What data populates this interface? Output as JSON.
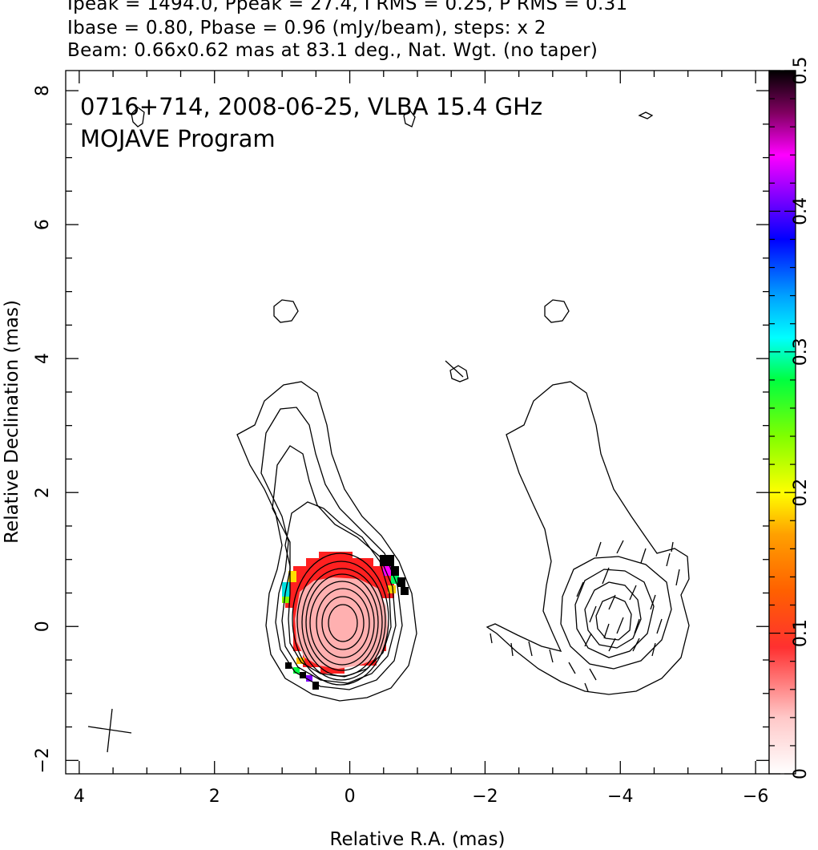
{
  "header": {
    "line1": "Ipeak = 1494.0, Ppeak = 27.4, I RMS = 0.25, P RMS = 0.31",
    "line2": "Ibase = 0.80, Pbase = 0.96 (mJy/beam), steps: x 2",
    "line3": "Beam: 0.66x0.62 mas at 83.1 deg., Nat. Wgt. (no taper)"
  },
  "map_title": {
    "line1": "0716+714, 2008-06-25, VLBA 15.4 GHz",
    "line2": "MOJAVE Program"
  },
  "chart_data": {
    "type": "contour",
    "xlabel": "Relative R.A. (mas)",
    "ylabel": "Relative Declination (mas)",
    "xlim": [
      4.2,
      -6.2
    ],
    "ylim": [
      -2.2,
      8.3
    ],
    "x_ticks": [
      4,
      2,
      0,
      -2,
      -4,
      -6
    ],
    "x_tick_labels": [
      "4",
      "2",
      "0",
      "−2",
      "−4",
      "−6"
    ],
    "y_ticks": [
      -2,
      0,
      2,
      4,
      6,
      8
    ],
    "y_tick_labels": [
      "−2",
      "0",
      "2",
      "4",
      "6",
      "8"
    ],
    "colorbar": {
      "min": 0,
      "max": 0.5,
      "ticks": [
        0,
        0.1,
        0.2,
        0.3,
        0.4,
        0.5
      ],
      "tick_labels": [
        "0",
        "0.1",
        "0.2",
        "0.3",
        "0.4",
        "0.5"
      ]
    },
    "intensity_peak_mJy_per_beam": 1494.0,
    "polarized_peak_mJy_per_beam": 27.4,
    "contour_base_mJy_per_beam": 0.8,
    "contour_step_factor": 2,
    "left_panel_core_position": [
      0,
      0
    ],
    "right_panel_core_position": [
      -4,
      0.2
    ]
  }
}
